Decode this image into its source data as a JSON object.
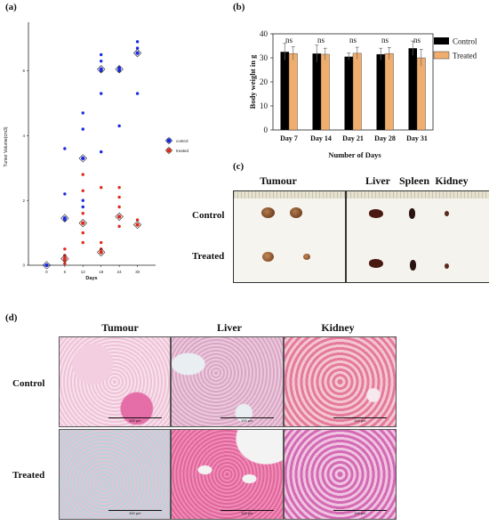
{
  "panels": {
    "a": "(a)",
    "b": "(b)",
    "c": "(c)",
    "d": "(d)"
  },
  "chart_data": [
    {
      "type": "scatter",
      "panel": "(a)",
      "ylabel": "Tumor Volume(cm3)",
      "xlabel": "Days",
      "x_ticks": [
        "0",
        "6",
        "12",
        "18",
        "24",
        "30"
      ],
      "y_ticks": [
        "0",
        "2",
        "4",
        "6"
      ],
      "ylim": [
        0,
        7.5
      ],
      "legend_position": "right",
      "series": [
        {
          "name": "control",
          "color": "#1a2be0",
          "points": [
            {
              "x": 0,
              "y": 0
            },
            {
              "x": 6,
              "y": 3.6
            },
            {
              "x": 6,
              "y": 2.2
            },
            {
              "x": 6,
              "y": 1.4
            },
            {
              "x": 6,
              "y": 0.3
            },
            {
              "x": 12,
              "y": 4.7
            },
            {
              "x": 12,
              "y": 4.2
            },
            {
              "x": 12,
              "y": 3.3
            },
            {
              "x": 12,
              "y": 2.0
            },
            {
              "x": 12,
              "y": 1.8
            },
            {
              "x": 18,
              "y": 6.5
            },
            {
              "x": 18,
              "y": 6.3
            },
            {
              "x": 18,
              "y": 6.0
            },
            {
              "x": 18,
              "y": 5.3
            },
            {
              "x": 18,
              "y": 3.5
            },
            {
              "x": 24,
              "y": 6.1
            },
            {
              "x": 24,
              "y": 6.0
            },
            {
              "x": 24,
              "y": 4.3
            },
            {
              "x": 30,
              "y": 6.9
            },
            {
              "x": 30,
              "y": 6.7
            },
            {
              "x": 30,
              "y": 5.3
            }
          ],
          "means": [
            {
              "x": 0,
              "y": 0
            },
            {
              "x": 6,
              "y": 1.45
            },
            {
              "x": 12,
              "y": 3.3
            },
            {
              "x": 18,
              "y": 6.05
            },
            {
              "x": 24,
              "y": 6.05
            },
            {
              "x": 30,
              "y": 6.55
            }
          ]
        },
        {
          "name": "treated",
          "color": "#e02a1a",
          "points": [
            {
              "x": 0,
              "y": 0
            },
            {
              "x": 6,
              "y": 0.5
            },
            {
              "x": 6,
              "y": 0.3
            },
            {
              "x": 6,
              "y": 0.15
            },
            {
              "x": 6,
              "y": 0.05
            },
            {
              "x": 12,
              "y": 2.8
            },
            {
              "x": 12,
              "y": 2.3
            },
            {
              "x": 12,
              "y": 1.6
            },
            {
              "x": 12,
              "y": 1.3
            },
            {
              "x": 12,
              "y": 1.0
            },
            {
              "x": 12,
              "y": 0.7
            },
            {
              "x": 18,
              "y": 2.4
            },
            {
              "x": 18,
              "y": 0.7
            },
            {
              "x": 18,
              "y": 0.5
            },
            {
              "x": 24,
              "y": 2.4
            },
            {
              "x": 24,
              "y": 2.1
            },
            {
              "x": 24,
              "y": 1.8
            },
            {
              "x": 24,
              "y": 1.2
            },
            {
              "x": 30,
              "y": 1.4
            },
            {
              "x": 30,
              "y": 1.25
            }
          ],
          "means": [
            {
              "x": 6,
              "y": 0.2
            },
            {
              "x": 12,
              "y": 1.3
            },
            {
              "x": 18,
              "y": 0.4
            },
            {
              "x": 24,
              "y": 1.5
            },
            {
              "x": 30,
              "y": 1.25
            }
          ]
        }
      ]
    },
    {
      "type": "bar",
      "panel": "(b)",
      "title": "",
      "ylabel": "Body weight in g",
      "xlabel": "Number of Days",
      "categories": [
        "Day 7",
        "Day 14",
        "Day 21",
        "Day 28",
        "Day 31"
      ],
      "ylim": [
        0,
        40
      ],
      "y_ticks": [
        "0",
        "10",
        "20",
        "30",
        "40"
      ],
      "annotations": [
        "ns",
        "ns",
        "ns",
        "ns",
        "ns"
      ],
      "legend_position": "right",
      "series": [
        {
          "name": "Control",
          "color": "#000000",
          "values": [
            32.5,
            31.8,
            30.5,
            31.5,
            34.0
          ],
          "errors": [
            3.5,
            3.5,
            1.5,
            2.5,
            3.0
          ]
        },
        {
          "name": "Treated",
          "color": "#f0ae6e",
          "values": [
            31.8,
            31.5,
            31.9,
            31.8,
            30.0
          ],
          "errors": [
            2.8,
            2.5,
            2.5,
            2.5,
            3.5
          ]
        }
      ]
    }
  ],
  "photos": {
    "headers": [
      "Tumour",
      "Liver",
      "Spleen",
      "Kidney"
    ],
    "rows": [
      "Control",
      "Treated"
    ]
  },
  "histology": {
    "headers": [
      "Tumour",
      "Liver",
      "Kidney"
    ],
    "rows": [
      "Control",
      "Treated"
    ],
    "scale": "100 µm"
  }
}
